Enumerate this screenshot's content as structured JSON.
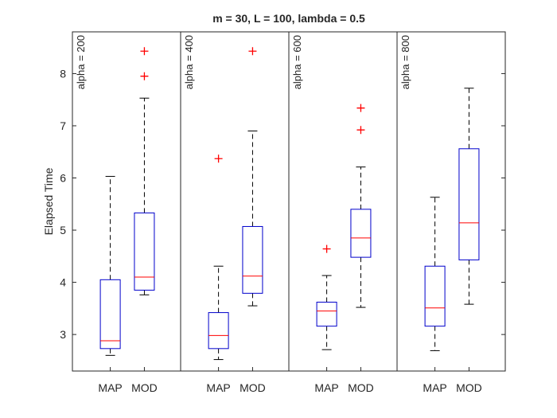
{
  "chart_data": {
    "type": "boxplot",
    "title": "m = 30, L = 100, lambda = 0.5",
    "ylabel": "Elapsed Time",
    "xlabel": "",
    "ylim": [
      2.3,
      8.8
    ],
    "yticks": [
      3,
      4,
      5,
      6,
      7,
      8
    ],
    "categories": [
      "MAP",
      "MOD"
    ],
    "colors": {
      "box": "#0000cc",
      "median": "#ff0000",
      "whisker": "#000000",
      "outlier": "#ff0000",
      "axis": "#262626"
    },
    "groups": [
      {
        "label": "alpha = 200",
        "boxes": [
          {
            "category": "MAP",
            "whisker_low": 2.6,
            "q1": 2.73,
            "median": 2.88,
            "q3": 4.05,
            "whisker_high": 6.03,
            "outliers": []
          },
          {
            "category": "MOD",
            "whisker_low": 3.76,
            "q1": 3.85,
            "median": 4.1,
            "q3": 5.33,
            "whisker_high": 7.53,
            "outliers": [
              7.95,
              8.43
            ]
          }
        ]
      },
      {
        "label": "alpha = 400",
        "boxes": [
          {
            "category": "MAP",
            "whisker_low": 2.52,
            "q1": 2.73,
            "median": 2.98,
            "q3": 3.42,
            "whisker_high": 4.31,
            "outliers": [
              6.37
            ]
          },
          {
            "category": "MOD",
            "whisker_low": 3.55,
            "q1": 3.79,
            "median": 4.12,
            "q3": 5.07,
            "whisker_high": 6.9,
            "outliers": [
              8.43
            ]
          }
        ]
      },
      {
        "label": "alpha = 600",
        "boxes": [
          {
            "category": "MAP",
            "whisker_low": 2.71,
            "q1": 3.16,
            "median": 3.45,
            "q3": 3.62,
            "whisker_high": 4.13,
            "outliers": [
              4.64
            ]
          },
          {
            "category": "MOD",
            "whisker_low": 3.52,
            "q1": 4.48,
            "median": 4.85,
            "q3": 5.4,
            "whisker_high": 6.21,
            "outliers": [
              6.92,
              7.34
            ]
          }
        ]
      },
      {
        "label": "alpha = 800",
        "boxes": [
          {
            "category": "MAP",
            "whisker_low": 2.69,
            "q1": 3.16,
            "median": 3.51,
            "q3": 4.31,
            "whisker_high": 5.63,
            "outliers": []
          },
          {
            "category": "MOD",
            "whisker_low": 3.58,
            "q1": 4.43,
            "median": 5.14,
            "q3": 6.56,
            "whisker_high": 7.72,
            "outliers": []
          }
        ]
      }
    ]
  }
}
